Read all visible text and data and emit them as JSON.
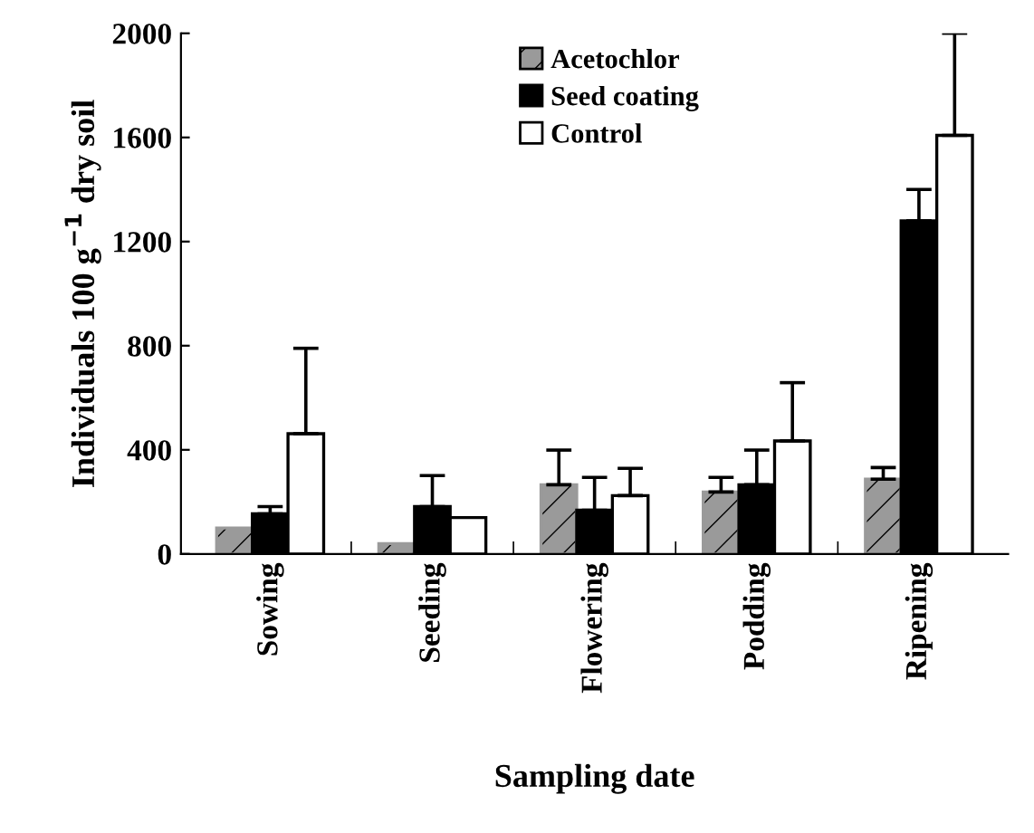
{
  "chart_data": {
    "type": "bar",
    "xlabel": "Sampling date",
    "ylabel": "Individuals 100 g$^{−1}$ dry soil",
    "categories": [
      "Sowing",
      "Seeding",
      "Flowering",
      "Podding",
      "Ripening"
    ],
    "series": [
      {
        "name": "Acetochlor",
        "color": "#9a9a9a",
        "values": [
          100,
          40,
          266,
          238,
          287
        ],
        "errors": [
          null,
          null,
          [
            266,
            399
          ],
          [
            238,
            294
          ],
          [
            287,
            332
          ]
        ]
      },
      {
        "name": "Seed coating",
        "color": "#000000",
        "values": [
          154,
          182,
          168,
          266,
          1280
        ],
        "errors": [
          [
            154,
            182
          ],
          [
            182,
            301
          ],
          [
            168,
            294
          ],
          [
            266,
            399
          ],
          [
            1280,
            1400
          ]
        ]
      },
      {
        "name": "Control",
        "color": "#ffffff",
        "values": [
          462,
          140,
          224,
          434,
          1608
        ],
        "errors": [
          [
            462,
            790
          ],
          null,
          [
            224,
            329
          ],
          [
            434,
            658
          ],
          [
            1608,
            2000
          ]
        ]
      }
    ],
    "ylim": [
      0,
      2000
    ],
    "yticks": [
      0,
      400,
      800,
      1200,
      1600,
      2000
    ],
    "grid": false,
    "legend": "top"
  }
}
